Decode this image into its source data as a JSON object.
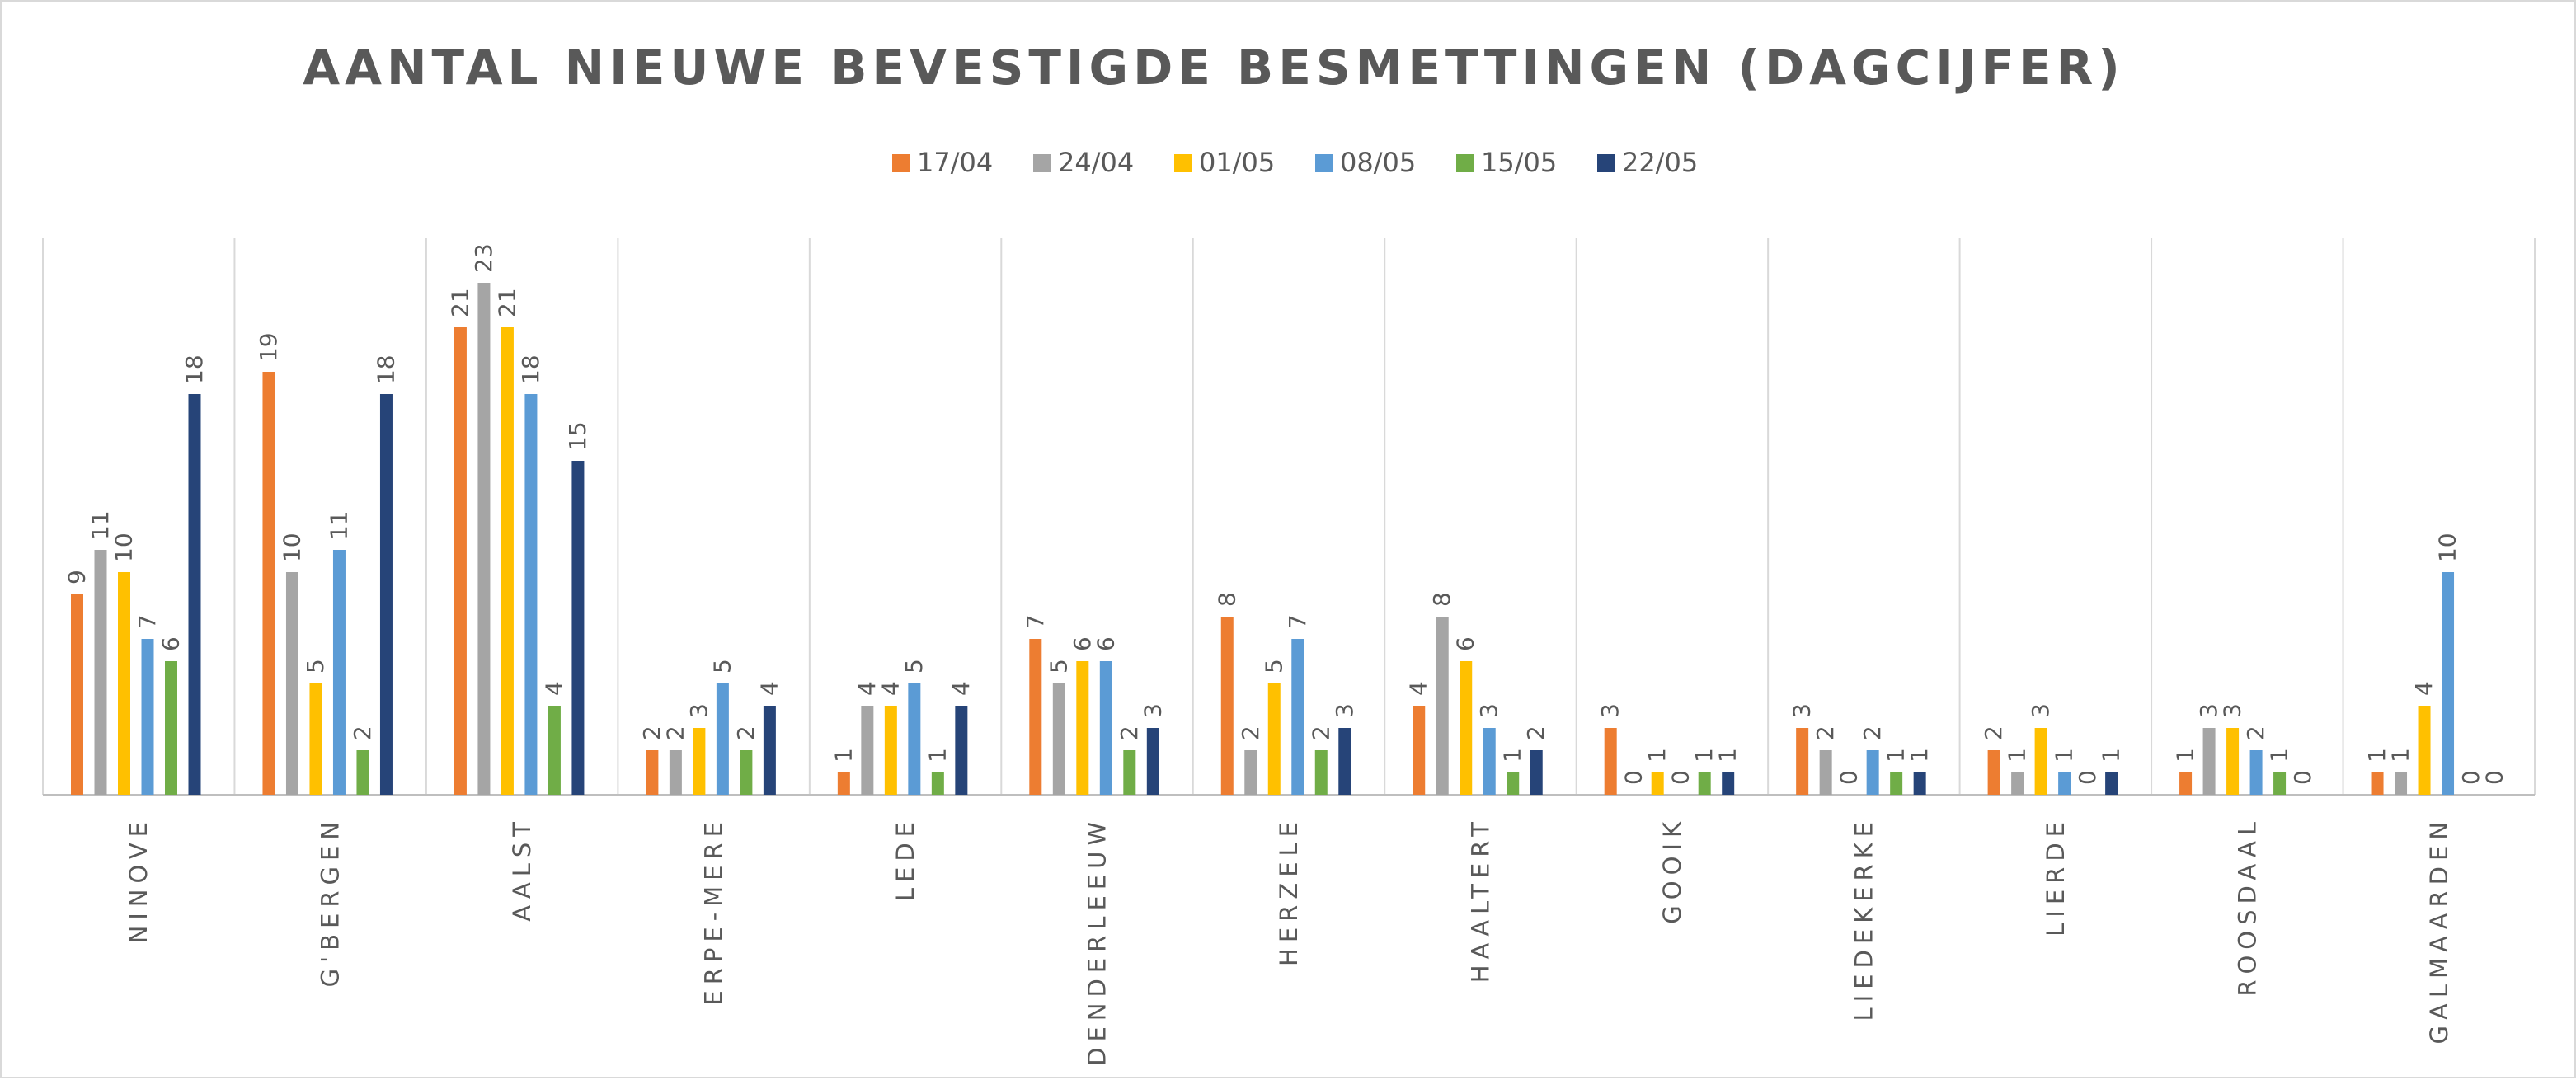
{
  "chart_data": {
    "type": "bar",
    "title": "AANTAL NIEUWE BEVESTIGDE BESMETTINGEN (DAGCIJFER)",
    "xlabel": "",
    "ylabel": "",
    "ylim": [
      0,
      25
    ],
    "grid": "vertical category separators",
    "legend_position": "top",
    "data_labels": true,
    "categories": [
      "NINOVE",
      "G'BERGEN",
      "AALST",
      "ERPE-MERE",
      "LEDE",
      "DENDERLEEUW",
      "HERZELE",
      "HAALTERT",
      "GOOIK",
      "LIEDEKERKE",
      "LIERDE",
      "ROOSDAAL",
      "GALMAARDEN"
    ],
    "series": [
      {
        "name": "17/04",
        "color": "#ed7d31",
        "values": [
          9,
          19,
          21,
          2,
          1,
          7,
          8,
          4,
          3,
          3,
          2,
          1,
          1
        ]
      },
      {
        "name": "24/04",
        "color": "#a5a5a5",
        "values": [
          11,
          10,
          23,
          2,
          4,
          5,
          2,
          8,
          0,
          2,
          1,
          3,
          1
        ]
      },
      {
        "name": "01/05",
        "color": "#ffc000",
        "values": [
          10,
          5,
          21,
          3,
          4,
          6,
          5,
          6,
          1,
          0,
          3,
          3,
          4
        ]
      },
      {
        "name": "08/05",
        "color": "#5b9bd5",
        "values": [
          7,
          11,
          18,
          5,
          5,
          6,
          7,
          3,
          0,
          2,
          1,
          2,
          10
        ]
      },
      {
        "name": "15/05",
        "color": "#70ad47",
        "values": [
          6,
          2,
          4,
          2,
          1,
          2,
          2,
          1,
          1,
          1,
          0,
          1,
          0
        ]
      },
      {
        "name": "22/05",
        "color": "#264478",
        "values": [
          18,
          18,
          15,
          4,
          4,
          3,
          3,
          2,
          1,
          1,
          1,
          0,
          0
        ]
      }
    ]
  }
}
